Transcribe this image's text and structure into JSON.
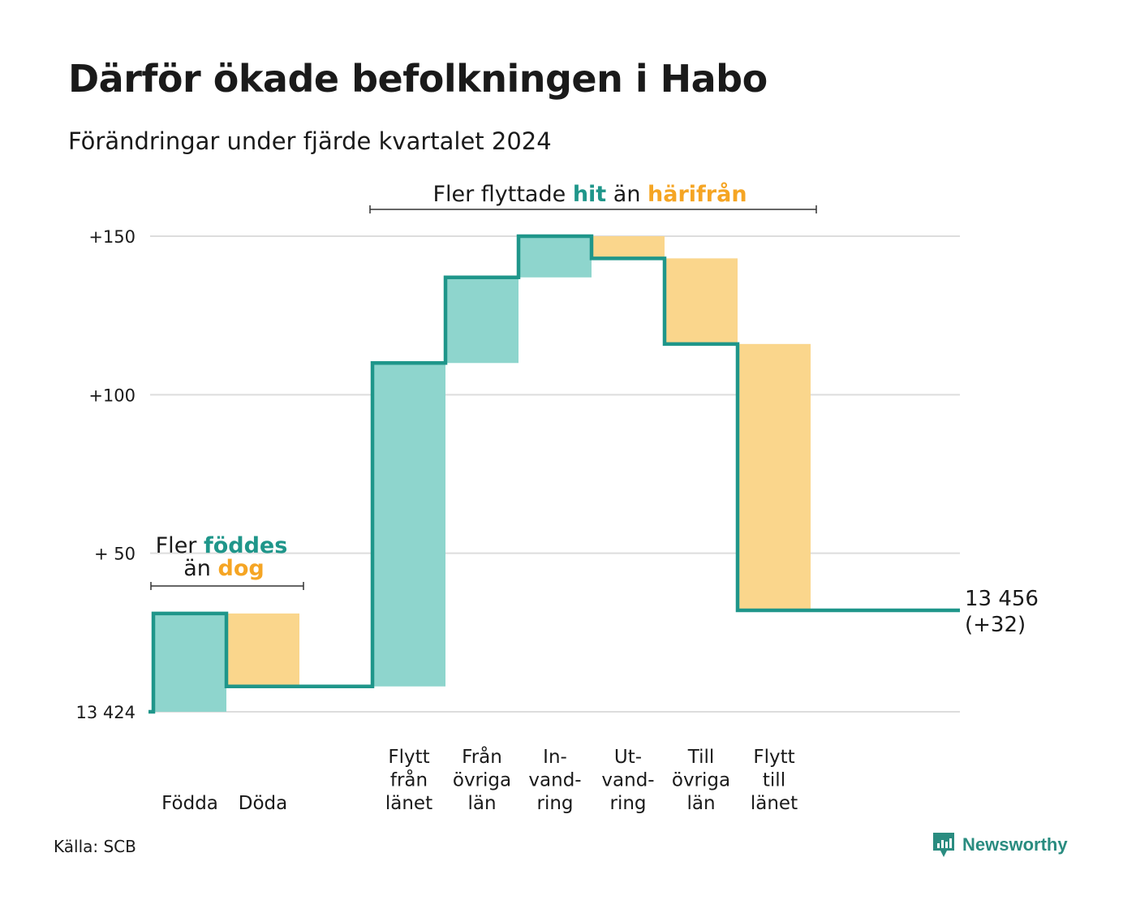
{
  "header": {
    "title": "Därför ökade befolkningen i Habo",
    "subtitle": "Förändringar under fjärde kvartalet 2024"
  },
  "colors": {
    "increase_fill": "#8ed5cd",
    "decrease_fill": "#fad68c",
    "step_line": "#1f968a",
    "teal_text": "#1f968a",
    "orange_text": "#f5a524",
    "grid": "#dddddd"
  },
  "chart_data": {
    "type": "waterfall",
    "baseline_label": "13 424",
    "yticks": [
      {
        "value": 150,
        "label": "+150"
      },
      {
        "value": 100,
        "label": "+100"
      },
      {
        "value": 50,
        "label": "+ 50"
      },
      {
        "value": 0,
        "label": "13 424"
      }
    ],
    "ylim": [
      0,
      150
    ],
    "steps": [
      {
        "label": [
          "Födda"
        ],
        "start": 0,
        "end": 31,
        "direction": "in"
      },
      {
        "label": [
          "Döda"
        ],
        "start": 31,
        "end": 8,
        "direction": "out"
      },
      {
        "label": [],
        "start": 8,
        "end": 8,
        "direction": "none"
      },
      {
        "label": [
          "Flytt",
          "från",
          "länet"
        ],
        "start": 8,
        "end": 110,
        "direction": "in"
      },
      {
        "label": [
          "Från",
          "övriga",
          "län"
        ],
        "start": 110,
        "end": 137,
        "direction": "in"
      },
      {
        "label": [
          "In-",
          "vand-",
          "ring"
        ],
        "start": 137,
        "end": 150,
        "direction": "in"
      },
      {
        "label": [
          "Ut-",
          "vand-",
          "ring"
        ],
        "start": 150,
        "end": 143,
        "direction": "out"
      },
      {
        "label": [
          "Till",
          "övriga",
          "län"
        ],
        "start": 143,
        "end": 116,
        "direction": "out"
      },
      {
        "label": [
          "Flytt",
          "till",
          "länet"
        ],
        "start": 116,
        "end": 32,
        "direction": "out"
      }
    ],
    "final": {
      "value": 32,
      "label_total": "13 456",
      "label_change": "(+32)"
    },
    "annotations": {
      "natural": {
        "line1_prefix": "Fler",
        "line1_highlight": "föddes",
        "line2_prefix": "än",
        "line2_highlight": "dog"
      },
      "migration": {
        "prefix": "Fler flyttade",
        "highlight1": "hit",
        "middle": "än",
        "highlight2": "härifrån"
      }
    }
  },
  "footer": {
    "source": "Källa: SCB",
    "brand": "Newsworthy",
    "brand_icon": "newsworthy-logo-icon"
  }
}
